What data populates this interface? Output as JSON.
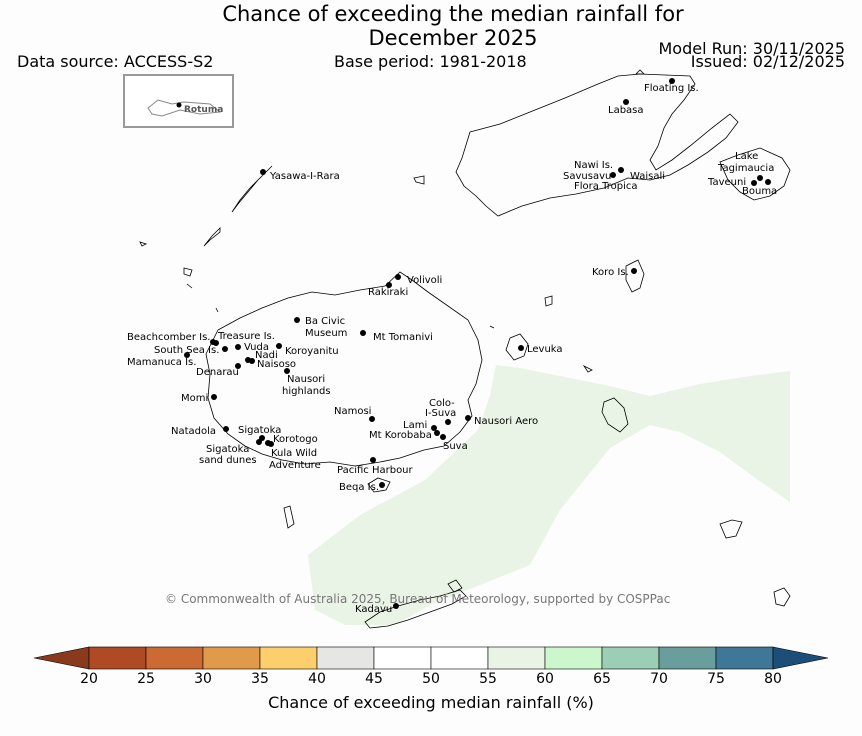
{
  "title": {
    "line1": "Chance of exceeding the median rainfall for",
    "line2": "December 2025"
  },
  "header": {
    "data_source": "Data source: ACCESS-S2",
    "base_period": "Base period: 1981-2018",
    "model_run": "Model Run: 30/11/2025",
    "issued": "Issued: 02/12/2025"
  },
  "inset": {
    "label": "Rotuma"
  },
  "map_forecast": {
    "shaded_category": "55-60",
    "fill_color": "#eaf4e6"
  },
  "places": {
    "floating": "Floating Is.",
    "labasa": "Labasa",
    "yasawa": "Yasawa-I-Rara",
    "nawi": "Nawi Is.",
    "savusavu": "Savusavu",
    "waisali": "Waisali",
    "flora": "Flora Tropica",
    "lake1": "Lake",
    "lake2": "Tagimaucia",
    "taveuni": "Taveuni",
    "bouma": "Bouma",
    "volivoli": "Volivoli",
    "rakiraki": "Rakiraki",
    "koro": "Koro Is.",
    "bacivic1": "Ba Civic",
    "bacivic2": "Museum",
    "tomanivi": "Mt Tomanivi",
    "beachcomber": "Beachcomber Is.",
    "treasure": "Treasure Is.",
    "southsea": "South Sea Is.",
    "vuda": "Vuda",
    "koroyanitu": "Koroyanitu",
    "mamanuca": "Mamanuca Is.",
    "nadi": "Nadi",
    "naisoso": "Naisoso",
    "denarau": "Denarau",
    "nausori1": "Nausori",
    "nausori2": "highlands",
    "levuka": "Levuka",
    "momi": "Momi",
    "namosi": "Namosi",
    "colo1": "Colo-",
    "colo2": "I-Suva",
    "nausoriaero": "Nausori Aero",
    "lami": "Lami",
    "korobaba": "Mt Korobaba",
    "suva": "Suva",
    "natadola": "Natadola",
    "sigatoka": "Sigatoka",
    "korotogo": "Korotogo",
    "sandunes1": "Sigatoka",
    "sandunes2": "sand dunes",
    "kula1": "Kula Wild",
    "kula2": "Adventure",
    "pacific": "Pacific Harbour",
    "beqa": "Beqa Is.",
    "kadavu": "Kadavu"
  },
  "copyright": "© Commonwealth of Australia 2025, Bureau of Meteorology, supported by COSPPac",
  "colorbar": {
    "label": "Chance of exceeding median rainfall (%)",
    "ticks": [
      "20",
      "25",
      "30",
      "35",
      "40",
      "45",
      "50",
      "55",
      "60",
      "65",
      "70",
      "75",
      "80"
    ],
    "low_extend_color": "#8a3a1c",
    "high_extend_color": "#1d4e7a",
    "colors": [
      "#b04a24",
      "#cc6a34",
      "#e19a4a",
      "#fccf6c",
      "#e6e6e4",
      "#ffffff",
      "#ffffff",
      "#eaf4e6",
      "#ccf7cc",
      "#9ccdb5",
      "#6a9e9c",
      "#3f7797"
    ]
  }
}
